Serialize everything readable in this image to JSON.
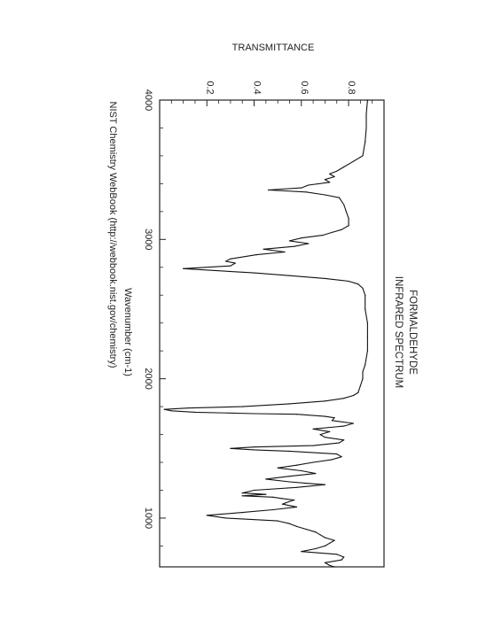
{
  "chart_data": {
    "type": "line",
    "title": "FORMALDEHYDE",
    "subtitle": "INFRARED SPECTRUM",
    "xlabel": "Wavenumber (cm-1)",
    "ylabel": "TRANSMITTANCE",
    "source": "NIST Chemistry WebBook (http://webbook.nist.gov/chemistry)",
    "xlim": [
      4000,
      650
    ],
    "ylim": [
      0.0,
      0.95
    ],
    "x_ticks": [
      {
        "value": 4000,
        "label": "4000"
      },
      {
        "value": 3000,
        "label": "3000"
      },
      {
        "value": 2000,
        "label": "2000"
      },
      {
        "value": 1000,
        "label": "1000"
      }
    ],
    "y_ticks": [
      {
        "value": 0.2,
        "label": "0.2"
      },
      {
        "value": 0.4,
        "label": "0.4"
      },
      {
        "value": 0.6,
        "label": "0.6"
      },
      {
        "value": 0.8,
        "label": "0.8"
      }
    ],
    "grid": false,
    "series": [
      {
        "color": "#111111",
        "x": [
          4000,
          3900,
          3800,
          3700,
          3600,
          3560,
          3520,
          3490,
          3470,
          3450,
          3430,
          3410,
          3390,
          3370,
          3355,
          3340,
          3320,
          3300,
          3250,
          3200,
          3150,
          3100,
          3070,
          3050,
          3030,
          3010,
          2990,
          2970,
          2950,
          2930,
          2910,
          2890,
          2860,
          2843,
          2830,
          2810,
          2790,
          2760,
          2740,
          2720,
          2700,
          2680,
          2650,
          2600,
          2500,
          2400,
          2300,
          2200,
          2100,
          2050,
          2000,
          1950,
          1900,
          1880,
          1860,
          1840,
          1820,
          1800,
          1790,
          1780,
          1770,
          1760,
          1750,
          1745,
          1730,
          1720,
          1700,
          1680,
          1660,
          1640,
          1620,
          1600,
          1580,
          1560,
          1540,
          1520,
          1510,
          1500,
          1490,
          1480,
          1460,
          1440,
          1420,
          1400,
          1380,
          1360,
          1340,
          1320,
          1300,
          1280,
          1260,
          1250,
          1240,
          1220,
          1200,
          1180,
          1170,
          1160,
          1150,
          1140,
          1130,
          1120,
          1100,
          1080,
          1060,
          1040,
          1020,
          1000,
          980,
          960,
          940,
          920,
          900,
          880,
          860,
          840,
          820,
          800,
          780,
          760,
          740,
          720,
          700,
          680,
          660,
          650
        ],
        "y": [
          0.88,
          0.875,
          0.875,
          0.87,
          0.86,
          0.82,
          0.78,
          0.75,
          0.72,
          0.74,
          0.7,
          0.72,
          0.63,
          0.6,
          0.46,
          0.62,
          0.7,
          0.76,
          0.78,
          0.79,
          0.8,
          0.8,
          0.77,
          0.73,
          0.69,
          0.6,
          0.55,
          0.63,
          0.57,
          0.44,
          0.53,
          0.41,
          0.3,
          0.28,
          0.32,
          0.3,
          0.1,
          0.4,
          0.55,
          0.7,
          0.8,
          0.84,
          0.86,
          0.87,
          0.87,
          0.88,
          0.88,
          0.88,
          0.87,
          0.86,
          0.86,
          0.85,
          0.84,
          0.82,
          0.78,
          0.7,
          0.55,
          0.35,
          0.12,
          0.02,
          0.05,
          0.15,
          0.4,
          0.58,
          0.7,
          0.74,
          0.73,
          0.82,
          0.78,
          0.65,
          0.72,
          0.68,
          0.7,
          0.78,
          0.76,
          0.65,
          0.4,
          0.3,
          0.4,
          0.55,
          0.75,
          0.77,
          0.73,
          0.65,
          0.58,
          0.5,
          0.6,
          0.66,
          0.55,
          0.45,
          0.55,
          0.62,
          0.7,
          0.58,
          0.4,
          0.35,
          0.45,
          0.35,
          0.48,
          0.52,
          0.57,
          0.55,
          0.52,
          0.58,
          0.48,
          0.35,
          0.2,
          0.28,
          0.5,
          0.55,
          0.58,
          0.62,
          0.66,
          0.68,
          0.7,
          0.74,
          0.72,
          0.7,
          0.66,
          0.6,
          0.75,
          0.78,
          0.77,
          0.7,
          0.72,
          0.74
        ]
      }
    ]
  }
}
